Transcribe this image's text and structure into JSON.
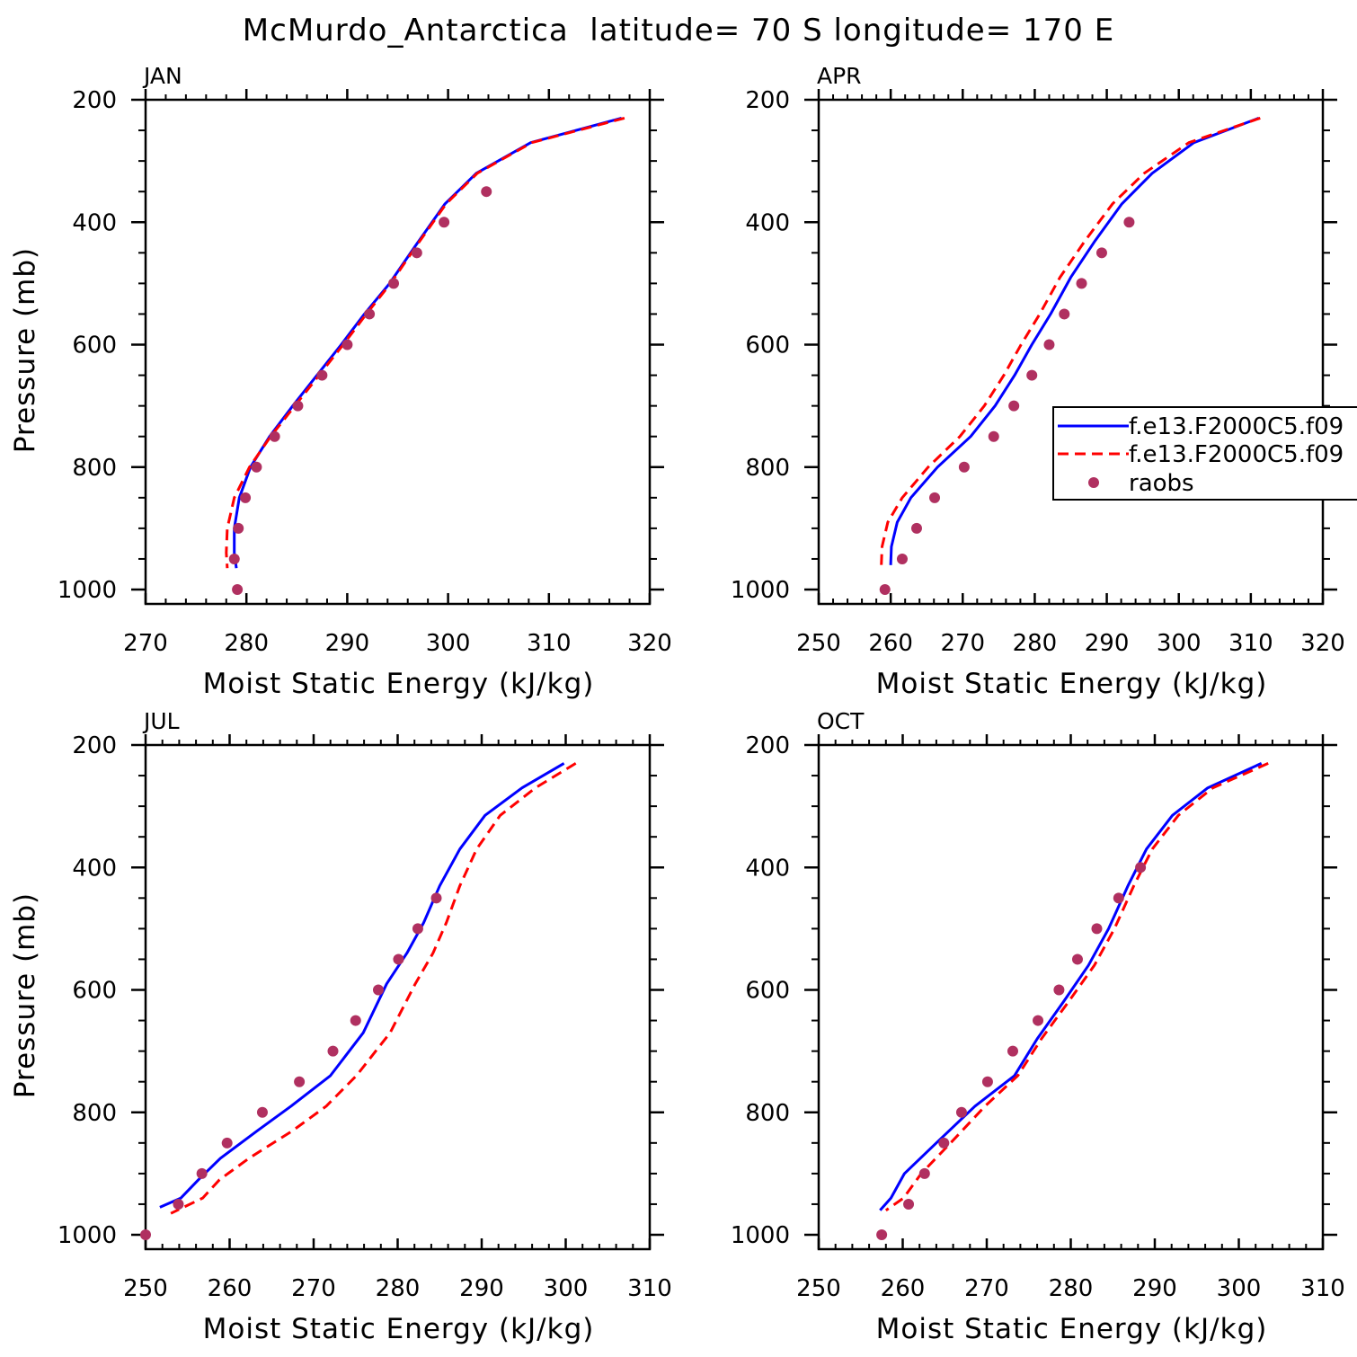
{
  "figure_title": "McMurdo_Antarctica  latitude= 70 S longitude= 170 E",
  "colors": {
    "model1": "#0000ff",
    "model2": "#ff0000",
    "raobs": "#b03060",
    "axes": "#000000"
  },
  "legend": {
    "items": [
      {
        "label": "f.e13.F2000C5.f09",
        "style": "solid",
        "color": "#0000ff"
      },
      {
        "label": "f.e13.F2000C5.f09",
        "style": "dashed",
        "color": "#ff0000"
      },
      {
        "label": "raobs",
        "style": "marker",
        "color": "#b03060"
      }
    ]
  },
  "chart_data": [
    {
      "type": "line",
      "title": "JAN",
      "xlabel": "Moist Static Energy (kJ/kg)",
      "ylabel": "Pressure (mb)",
      "xlim": [
        270,
        320
      ],
      "ylim": [
        1000,
        200
      ],
      "xticks": [
        270,
        280,
        290,
        300,
        310,
        320
      ],
      "yticks": [
        200,
        400,
        600,
        800,
        1000
      ],
      "series": [
        {
          "name": "f.e13.F2000C5.f09 (solid)",
          "style": "solid",
          "x": [
            317.2,
            308.2,
            302.8,
            299.7,
            296.7,
            294.2,
            291.7,
            289.4,
            287.0,
            284.6,
            282.3,
            280.4,
            279.3,
            278.8,
            278.8,
            279.0
          ],
          "y": [
            230,
            270,
            320,
            370,
            440,
            500,
            550,
            600,
            650,
            700,
            750,
            800,
            850,
            900,
            940,
            965
          ]
        },
        {
          "name": "f.e13.F2000C5.f09 (dashed)",
          "style": "dashed",
          "x": [
            317.5,
            308.3,
            302.9,
            299.8,
            296.8,
            294.3,
            291.9,
            289.6,
            287.2,
            284.8,
            282.4,
            280.3,
            278.8,
            278.1,
            278.0,
            278.1
          ],
          "y": [
            230,
            270,
            320,
            370,
            440,
            500,
            550,
            600,
            650,
            700,
            750,
            800,
            850,
            900,
            940,
            965
          ]
        },
        {
          "name": "raobs",
          "style": "marker",
          "x": [
            303.8,
            299.6,
            296.9,
            294.6,
            292.2,
            290.0,
            287.5,
            285.1,
            282.8,
            281.0,
            279.9,
            279.2,
            278.8,
            279.1
          ],
          "y": [
            350,
            400,
            450,
            500,
            550,
            600,
            650,
            700,
            750,
            800,
            850,
            900,
            950,
            1000
          ]
        }
      ]
    },
    {
      "type": "line",
      "title": "APR",
      "xlabel": "Moist Static Energy (kJ/kg)",
      "ylabel": "",
      "xlim": [
        250,
        320
      ],
      "ylim": [
        1000,
        200
      ],
      "xticks": [
        250,
        260,
        270,
        280,
        290,
        300,
        310,
        320
      ],
      "yticks": [
        200,
        400,
        600,
        800,
        1000
      ],
      "series": [
        {
          "name": "f.e13.F2000C5.f09 (solid)",
          "style": "solid",
          "x": [
            311.1,
            302.1,
            296.3,
            292.1,
            288.4,
            285.0,
            282.2,
            279.6,
            277.2,
            274.5,
            271.1,
            266.5,
            262.8,
            260.9,
            260.1,
            260.0
          ],
          "y": [
            230,
            270,
            320,
            370,
            430,
            490,
            550,
            600,
            650,
            700,
            750,
            800,
            850,
            890,
            930,
            960
          ]
        },
        {
          "name": "f.e13.F2000C5.f09 (dashed)",
          "style": "dashed",
          "x": [
            311.3,
            301.4,
            295.2,
            290.8,
            287.0,
            283.5,
            280.7,
            278.1,
            275.7,
            273.0,
            269.6,
            265.2,
            261.6,
            259.6,
            258.8,
            258.7
          ],
          "y": [
            230,
            270,
            320,
            370,
            430,
            490,
            550,
            600,
            650,
            700,
            750,
            800,
            850,
            890,
            930,
            960
          ]
        },
        {
          "name": "raobs",
          "style": "marker",
          "x": [
            293.1,
            289.3,
            286.5,
            284.1,
            282.0,
            279.6,
            277.1,
            274.3,
            270.2,
            266.1,
            263.6,
            261.6,
            259.2
          ],
          "y": [
            400,
            450,
            500,
            550,
            600,
            650,
            700,
            750,
            800,
            850,
            900,
            950,
            1000
          ]
        }
      ]
    },
    {
      "type": "line",
      "title": "JUL",
      "xlabel": "Moist Static Energy (kJ/kg)",
      "ylabel": "Pressure (mb)",
      "xlim": [
        250,
        310
      ],
      "ylim": [
        1000,
        200
      ],
      "xticks": [
        250,
        260,
        270,
        280,
        290,
        300,
        310
      ],
      "yticks": [
        200,
        400,
        600,
        800,
        1000
      ],
      "series": [
        {
          "name": "f.e13.F2000C5.f09 (solid)",
          "style": "solid",
          "x": [
            299.8,
            294.8,
            290.4,
            287.4,
            285.0,
            283.1,
            281.1,
            278.7,
            275.9,
            272.0,
            267.3,
            263.3,
            258.9,
            256.3,
            254.2,
            251.7
          ],
          "y": [
            230,
            270,
            315,
            370,
            430,
            490,
            540,
            590,
            670,
            740,
            790,
            830,
            875,
            910,
            940,
            955
          ]
        },
        {
          "name": "f.e13.F2000C5.f09 (dashed)",
          "style": "dashed",
          "x": [
            301.2,
            296.4,
            292.2,
            289.4,
            287.4,
            285.8,
            284.2,
            282.1,
            279.1,
            275.1,
            271.5,
            267.5,
            262.3,
            258.8,
            256.8,
            253.0
          ],
          "y": [
            230,
            270,
            315,
            370,
            430,
            490,
            540,
            590,
            670,
            740,
            790,
            830,
            875,
            910,
            940,
            965
          ]
        },
        {
          "name": "raobs",
          "style": "marker",
          "x": [
            284.6,
            282.4,
            280.1,
            277.7,
            275.0,
            272.3,
            268.3,
            263.9,
            259.7,
            256.7,
            253.9,
            250.0
          ],
          "y": [
            450,
            500,
            550,
            600,
            650,
            700,
            750,
            800,
            850,
            900,
            950,
            1000
          ]
        }
      ]
    },
    {
      "type": "line",
      "title": "OCT",
      "xlabel": "Moist Static Energy (kJ/kg)",
      "ylabel": "",
      "xlim": [
        250,
        310
      ],
      "ylim": [
        1000,
        200
      ],
      "xticks": [
        250,
        260,
        270,
        280,
        290,
        300,
        310
      ],
      "yticks": [
        200,
        400,
        600,
        800,
        1000
      ],
      "series": [
        {
          "name": "f.e13.F2000C5.f09 (solid)",
          "style": "solid",
          "x": [
            302.7,
            296.3,
            292.1,
            289.0,
            286.8,
            284.5,
            282.1,
            279.1,
            276.0,
            273.3,
            268.6,
            264.0,
            260.2,
            258.6,
            257.3
          ],
          "y": [
            230,
            270,
            315,
            370,
            430,
            500,
            560,
            620,
            680,
            740,
            790,
            850,
            900,
            940,
            960
          ]
        },
        {
          "name": "f.e13.F2000C5.f09 (dashed)",
          "style": "dashed",
          "x": [
            303.5,
            296.9,
            292.8,
            289.7,
            287.5,
            285.2,
            282.8,
            279.7,
            276.5,
            273.7,
            269.8,
            265.7,
            262.2,
            260.1,
            258.0
          ],
          "y": [
            230,
            270,
            315,
            370,
            430,
            500,
            560,
            620,
            680,
            740,
            790,
            850,
            900,
            940,
            960
          ]
        },
        {
          "name": "raobs",
          "style": "marker",
          "x": [
            288.3,
            285.7,
            283.1,
            280.8,
            278.6,
            276.1,
            273.1,
            270.1,
            267.0,
            264.9,
            262.6,
            260.7,
            257.5
          ],
          "y": [
            400,
            450,
            500,
            550,
            600,
            650,
            700,
            750,
            800,
            850,
            900,
            950,
            1000
          ]
        }
      ]
    }
  ]
}
